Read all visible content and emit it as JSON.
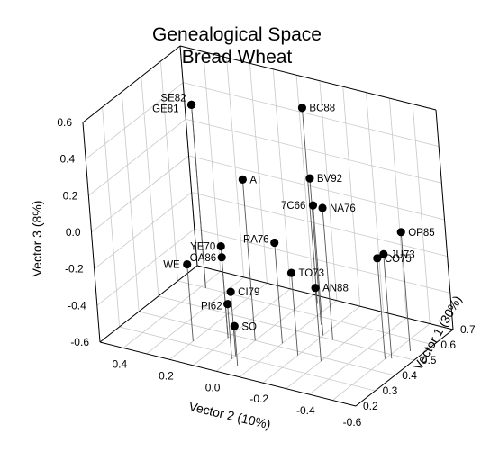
{
  "chart_data": {
    "type": "scatter3d",
    "title": [
      "Genealogical Space",
      "Bread Wheat"
    ],
    "xlabel": "Vector 2 (10%)",
    "ylabel": "Vector 1 (30%)",
    "zlabel": "Vector 3 (8%)",
    "x_ticks": [
      "0.4",
      "0.2",
      "0.0",
      "-0.2",
      "-0.4",
      "-0.6"
    ],
    "y_ticks": [
      "0.2",
      "0.3",
      "0.4",
      "0.5",
      "0.6",
      "0.7"
    ],
    "z_ticks": [
      "0.6",
      "0.4",
      "0.2",
      "0.0",
      "-0.2",
      "-0.4",
      "-0.6"
    ],
    "xlim": [
      0.5,
      -0.6
    ],
    "ylim": [
      0.2,
      0.7
    ],
    "zlim": [
      -0.6,
      0.6
    ],
    "grid": true,
    "points": [
      {
        "label": "SE82",
        "x": 0.38,
        "y": 0.6,
        "z": 0.4
      },
      {
        "label": "GE81",
        "x": 0.38,
        "y": 0.6,
        "z": 0.4
      },
      {
        "label": "AT",
        "x": 0.0,
        "y": 0.4,
        "z": 0.28
      },
      {
        "label": "BC88",
        "x": -0.05,
        "y": 0.66,
        "z": 0.47
      },
      {
        "label": "BV92",
        "x": -0.15,
        "y": 0.56,
        "z": 0.2
      },
      {
        "label": "7C66",
        "x": -0.2,
        "y": 0.51,
        "z": 0.11
      },
      {
        "label": "NA76",
        "x": -0.25,
        "y": 0.5,
        "z": 0.12
      },
      {
        "label": "OP85",
        "x": -0.55,
        "y": 0.54,
        "z": 0.05
      },
      {
        "label": "JU73",
        "x": -0.52,
        "y": 0.48,
        "z": -0.03
      },
      {
        "label": "CO75",
        "x": -0.5,
        "y": 0.47,
        "z": -0.05
      },
      {
        "label": "RA76",
        "x": -0.1,
        "y": 0.42,
        "z": -0.05
      },
      {
        "label": "YE70",
        "x": 0.1,
        "y": 0.38,
        "z": -0.1
      },
      {
        "label": "OA86",
        "x": 0.1,
        "y": 0.38,
        "z": -0.16
      },
      {
        "label": "TO73",
        "x": -0.2,
        "y": 0.38,
        "z": -0.15
      },
      {
        "label": "AN88",
        "x": -0.3,
        "y": 0.38,
        "z": -0.2
      },
      {
        "label": "WE",
        "x": 0.2,
        "y": 0.32,
        "z": -0.18
      },
      {
        "label": "CI79",
        "x": 0.0,
        "y": 0.3,
        "z": -0.25
      },
      {
        "label": "PI62",
        "x": 0.0,
        "y": 0.28,
        "z": -0.3
      },
      {
        "label": "SO",
        "x": -0.05,
        "y": 0.25,
        "z": -0.38
      }
    ]
  }
}
